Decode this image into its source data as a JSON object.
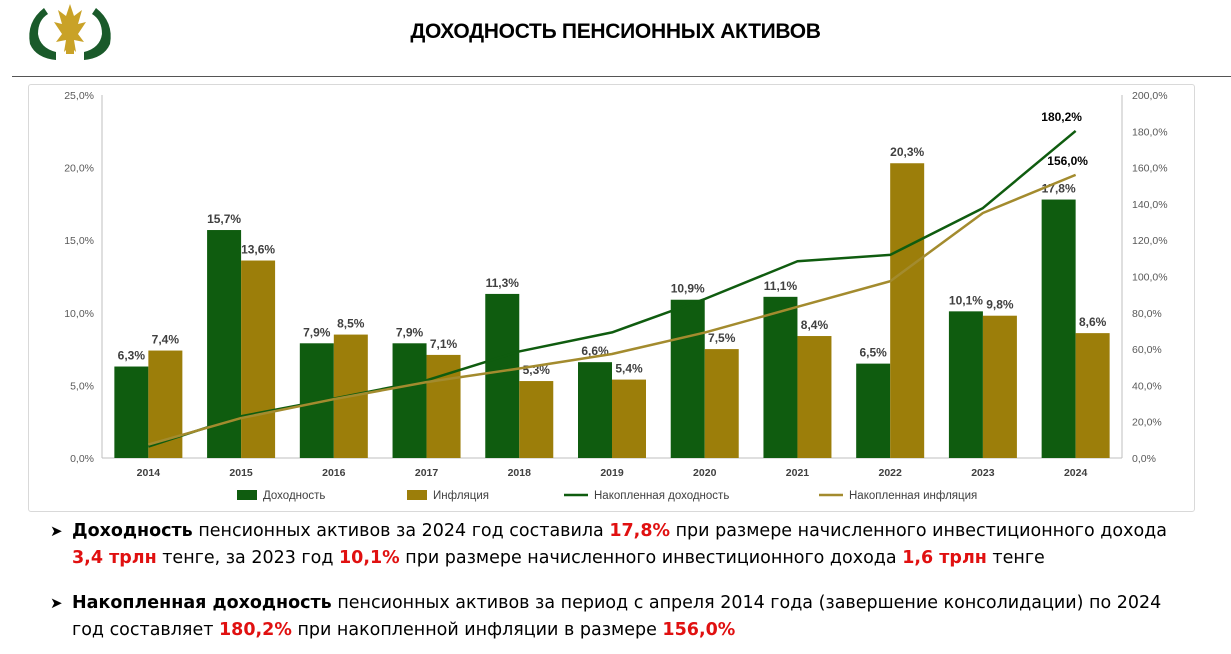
{
  "header": {
    "title": "ДОХОДНОСТЬ ПЕНСИОННЫХ АКТИВОВ",
    "logo_icon": "bank-emblem-icon",
    "colors": {
      "logo_green": "#1a5a2a",
      "logo_gold": "#c9a227"
    }
  },
  "chart_data": {
    "type": "bar",
    "categories": [
      "2014",
      "2015",
      "2016",
      "2017",
      "2018",
      "2019",
      "2020",
      "2021",
      "2022",
      "2023",
      "2024"
    ],
    "series": [
      {
        "name": "Доходность",
        "type": "bar",
        "axis": "left",
        "color": "#0f5c0f",
        "values": [
          6.3,
          15.7,
          7.9,
          7.9,
          11.3,
          6.6,
          10.9,
          11.1,
          6.5,
          10.1,
          17.8
        ],
        "labels": [
          "6,3%",
          "15,7%",
          "7,9%",
          "7,9%",
          "11,3%",
          "6,6%",
          "10,9%",
          "11,1%",
          "6,5%",
          "10,1%",
          "17,8%"
        ]
      },
      {
        "name": "Инфляция",
        "type": "bar",
        "axis": "left",
        "color": "#9c7e0a",
        "values": [
          7.4,
          13.6,
          8.5,
          7.1,
          5.3,
          5.4,
          7.5,
          8.4,
          20.3,
          9.8,
          8.6
        ],
        "labels": [
          "7,4%",
          "13,6%",
          "8,5%",
          "7,1%",
          "5,3%",
          "5,4%",
          "7,5%",
          "8,4%",
          "20,3%",
          "9,8%",
          "8,6%"
        ]
      },
      {
        "name": "Накопленная доходность",
        "type": "line",
        "axis": "right",
        "color": "#0f5c0f",
        "values": [
          6.3,
          23.0,
          32.7,
          42.8,
          58.7,
          69.2,
          87.6,
          108.4,
          111.9,
          137.7,
          180.2
        ],
        "end_label": "180,2%"
      },
      {
        "name": "Накопленная инфляция",
        "type": "line",
        "axis": "right",
        "color": "#a38b2e",
        "values": [
          7.4,
          22.0,
          32.4,
          41.8,
          49.3,
          57.3,
          69.1,
          83.3,
          97.4,
          135.0,
          156.0
        ],
        "end_label": "156,0%"
      }
    ],
    "y_left": {
      "min": 0,
      "max": 25,
      "ticks": [
        "0,0%",
        "5,0%",
        "10,0%",
        "15,0%",
        "20,0%",
        "25,0%"
      ]
    },
    "y_right": {
      "min": 0,
      "max": 200,
      "ticks": [
        "0,0%",
        "20,0%",
        "40,0%",
        "60,0%",
        "80,0%",
        "100,0%",
        "120,0%",
        "140,0%",
        "160,0%",
        "180,0%",
        "200,0%"
      ]
    },
    "grid": false,
    "legend_position": "bottom"
  },
  "bullets": [
    {
      "icon": "arrow-bullet-icon",
      "t1": "Доходность",
      "t2": " пенсионных активов за 2024 год составила ",
      "t3": "17,8%",
      "t4": " при размере начисленного инвестиционного дохода ",
      "t5": "3,4 трлн",
      "t6": " тенге, за 2023 год ",
      "t7": "10,1%",
      "t8": " при размере начисленного инвестиционного дохода ",
      "t9": "1,6 трлн",
      "t10": " тенге"
    },
    {
      "icon": "arrow-bullet-icon",
      "t1": "Накопленная доходность",
      "t2": " пенсионных активов за период с апреля 2014 года (завершение консолидации) по 2024 год составляет ",
      "t3": "180,2%",
      "t4": " при накопленной инфляции в размере ",
      "t5": "156,0%"
    }
  ]
}
